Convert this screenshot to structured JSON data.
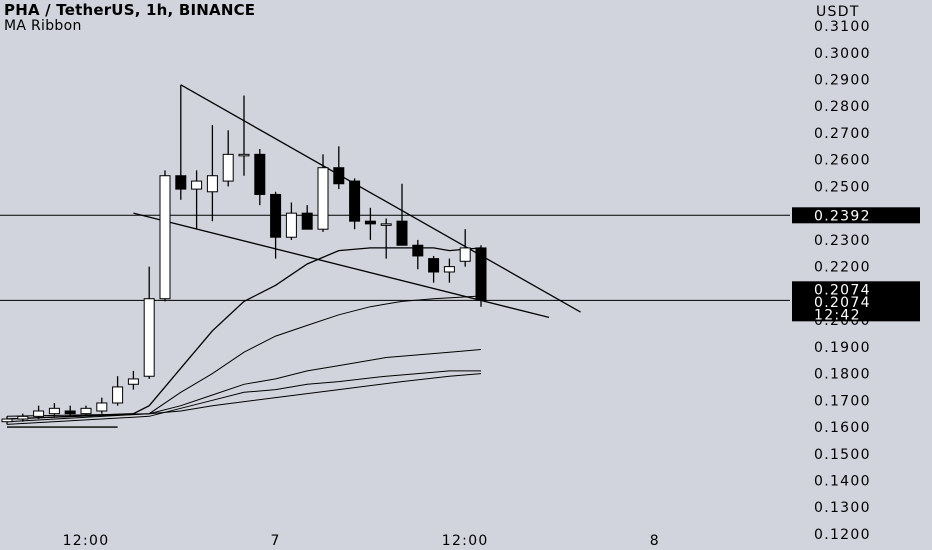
{
  "legend": {
    "title": "PHA / TetherUS, 1h, BINANCE",
    "subtitle": "MA Ribbon"
  },
  "price_axis": {
    "unit": "USDT",
    "ticks": [
      "0.1200",
      "0.1300",
      "0.1400",
      "0.1500",
      "0.1600",
      "0.1700",
      "0.1800",
      "0.1900",
      "0.2000",
      "0.2100",
      "0.2200",
      "0.2300",
      "0.2400",
      "0.2500",
      "0.2600",
      "0.2700",
      "0.2800",
      "0.2900",
      "0.3000",
      "0.3100"
    ]
  },
  "time_axis": {
    "ticks": [
      {
        "label": "12:00",
        "bar": 5
      },
      {
        "label": "7",
        "bar": 17
      },
      {
        "label": "12:00",
        "bar": 29
      },
      {
        "label": "8",
        "bar": 41
      }
    ]
  },
  "price_tags": [
    {
      "label": "0.2392",
      "price": 0.2392
    },
    {
      "label": "0.2074",
      "price": 0.2074
    },
    {
      "label": "0.2074",
      "price": 0.2074
    },
    {
      "label": "12:42",
      "price": 0.2074
    }
  ],
  "horizontal_lines": [
    0.2392,
    0.2074
  ],
  "colors": {
    "background": "#d1d4dc",
    "up_candle": "#ffffff",
    "down_candle": "#000000",
    "wick": "#000000",
    "tag_background": "#000000",
    "tag_text": "#ffffff"
  },
  "chart_data": {
    "type": "candlestick",
    "symbol": "PHA / TetherUS",
    "timeframe": "1h",
    "exchange": "BINANCE",
    "ylim": [
      0.117,
      0.313
    ],
    "y_unit": "USDT",
    "candles": [
      {
        "o": 0.162,
        "h": 0.164,
        "l": 0.161,
        "c": 0.163
      },
      {
        "o": 0.163,
        "h": 0.165,
        "l": 0.162,
        "c": 0.164
      },
      {
        "o": 0.164,
        "h": 0.168,
        "l": 0.163,
        "c": 0.166
      },
      {
        "o": 0.165,
        "h": 0.169,
        "l": 0.164,
        "c": 0.167
      },
      {
        "o": 0.166,
        "h": 0.168,
        "l": 0.164,
        "c": 0.165
      },
      {
        "o": 0.165,
        "h": 0.168,
        "l": 0.164,
        "c": 0.167
      },
      {
        "o": 0.166,
        "h": 0.171,
        "l": 0.165,
        "c": 0.169
      },
      {
        "o": 0.169,
        "h": 0.179,
        "l": 0.168,
        "c": 0.175
      },
      {
        "o": 0.176,
        "h": 0.181,
        "l": 0.174,
        "c": 0.178
      },
      {
        "o": 0.179,
        "h": 0.22,
        "l": 0.178,
        "c": 0.208
      },
      {
        "o": 0.208,
        "h": 0.256,
        "l": 0.207,
        "c": 0.254
      },
      {
        "o": 0.254,
        "h": 0.288,
        "l": 0.245,
        "c": 0.249
      },
      {
        "o": 0.249,
        "h": 0.256,
        "l": 0.234,
        "c": 0.252
      },
      {
        "o": 0.248,
        "h": 0.273,
        "l": 0.237,
        "c": 0.254
      },
      {
        "o": 0.252,
        "h": 0.271,
        "l": 0.25,
        "c": 0.262
      },
      {
        "o": 0.262,
        "h": 0.284,
        "l": 0.254,
        "c": 0.262
      },
      {
        "o": 0.262,
        "h": 0.264,
        "l": 0.243,
        "c": 0.247
      },
      {
        "o": 0.247,
        "h": 0.248,
        "l": 0.223,
        "c": 0.231
      },
      {
        "o": 0.231,
        "h": 0.244,
        "l": 0.23,
        "c": 0.24
      },
      {
        "o": 0.24,
        "h": 0.243,
        "l": 0.234,
        "c": 0.234
      },
      {
        "o": 0.234,
        "h": 0.262,
        "l": 0.233,
        "c": 0.257
      },
      {
        "o": 0.257,
        "h": 0.265,
        "l": 0.249,
        "c": 0.251
      },
      {
        "o": 0.252,
        "h": 0.253,
        "l": 0.234,
        "c": 0.237
      },
      {
        "o": 0.237,
        "h": 0.242,
        "l": 0.23,
        "c": 0.236
      },
      {
        "o": 0.236,
        "h": 0.238,
        "l": 0.223,
        "c": 0.236
      },
      {
        "o": 0.237,
        "h": 0.251,
        "l": 0.229,
        "c": 0.228
      },
      {
        "o": 0.228,
        "h": 0.23,
        "l": 0.219,
        "c": 0.224
      },
      {
        "o": 0.223,
        "h": 0.224,
        "l": 0.214,
        "c": 0.218
      },
      {
        "o": 0.218,
        "h": 0.223,
        "l": 0.214,
        "c": 0.22
      },
      {
        "o": 0.222,
        "h": 0.234,
        "l": 0.22,
        "c": 0.227
      },
      {
        "o": 0.227,
        "h": 0.228,
        "l": 0.205,
        "c": 0.2074
      }
    ],
    "ma_ribbon": [
      {
        "points": [
          [
            0,
            0.163
          ],
          [
            8,
            0.165
          ],
          [
            9,
            0.168
          ],
          [
            11,
            0.182
          ],
          [
            13,
            0.196
          ],
          [
            15,
            0.207
          ],
          [
            17,
            0.213
          ],
          [
            19,
            0.221
          ],
          [
            21,
            0.226
          ],
          [
            23,
            0.227
          ],
          [
            25,
            0.227
          ],
          [
            27,
            0.227
          ],
          [
            28,
            0.226
          ],
          [
            30,
            0.227
          ]
        ]
      },
      {
        "points": [
          [
            0,
            0.163
          ],
          [
            9,
            0.165
          ],
          [
            11,
            0.173
          ],
          [
            13,
            0.18
          ],
          [
            15,
            0.188
          ],
          [
            17,
            0.194
          ],
          [
            19,
            0.198
          ],
          [
            21,
            0.202
          ],
          [
            23,
            0.205
          ],
          [
            25,
            0.207
          ],
          [
            27,
            0.208
          ],
          [
            30,
            0.209
          ]
        ]
      },
      {
        "points": [
          [
            0,
            0.162
          ],
          [
            9,
            0.165
          ],
          [
            11,
            0.168
          ],
          [
            13,
            0.172
          ],
          [
            15,
            0.176
          ],
          [
            17,
            0.178
          ],
          [
            19,
            0.181
          ],
          [
            21,
            0.183
          ],
          [
            24,
            0.186
          ],
          [
            26,
            0.187
          ],
          [
            28,
            0.188
          ],
          [
            30,
            0.189
          ]
        ]
      },
      {
        "points": [
          [
            0,
            0.161
          ],
          [
            9,
            0.164
          ],
          [
            11,
            0.167
          ],
          [
            13,
            0.17
          ],
          [
            15,
            0.173
          ],
          [
            17,
            0.174
          ],
          [
            19,
            0.176
          ],
          [
            21,
            0.177
          ],
          [
            24,
            0.179
          ],
          [
            26,
            0.18
          ],
          [
            28,
            0.181
          ],
          [
            30,
            0.181
          ]
        ]
      },
      {
        "points": [
          [
            0,
            0.164
          ],
          [
            9,
            0.165
          ],
          [
            11,
            0.166
          ],
          [
            13,
            0.168
          ],
          [
            17,
            0.171
          ],
          [
            21,
            0.174
          ],
          [
            25,
            0.177
          ],
          [
            28,
            0.179
          ],
          [
            30,
            0.18
          ]
        ]
      }
    ],
    "trendlines": [
      {
        "from": [
          11,
          0.288
        ],
        "to": [
          36.3,
          0.203
        ]
      },
      {
        "from": [
          8,
          0.24
        ],
        "to": [
          34.3,
          0.201
        ]
      },
      {
        "from": [
          0,
          0.16
        ],
        "to": [
          7,
          0.16
        ]
      }
    ]
  }
}
